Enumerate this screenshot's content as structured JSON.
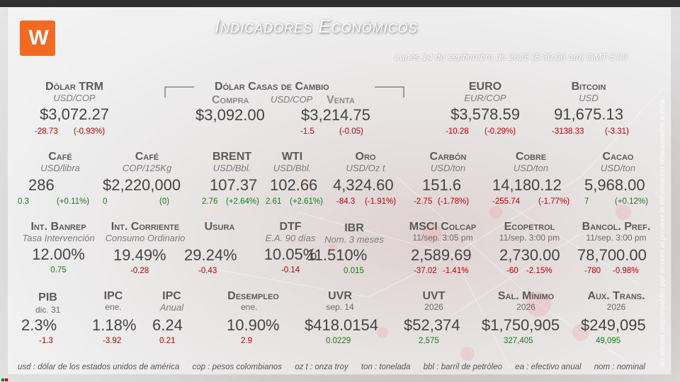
{
  "title": "Indicadores Económicos",
  "datetime": "Lunes 14 de septiembre de 2026 (5:30:00 am) GMT-5:00",
  "disclaimer": "No somos responsables por errores al proveer la información relacionados a ésta.",
  "logo": {
    "icon": "brand-logo-icon",
    "color": "#f26a21"
  },
  "colors": {
    "negative": "#c00000",
    "positive": "#1a7a1a"
  },
  "row1": {
    "trm": {
      "label": "Dólar TRM",
      "unit": "USD/COP",
      "value": "$3,072.27",
      "chg": "-28.73",
      "pct": "(-0.93%)"
    },
    "casas": {
      "label": "Dólar Casas de Cambio",
      "unit": "USD/COP",
      "compra_label": "Compra",
      "compra_value": "$3,092.00",
      "venta_label": "Venta",
      "venta_value": "$3,214.75",
      "venta_chg": "-1.5",
      "venta_pct": "(-0.05)"
    },
    "euro": {
      "label": "EURO",
      "unit": "EUR/COP",
      "value": "$3,578.59",
      "chg": "-10.28",
      "pct": "(-0.29%)"
    },
    "bitcoin": {
      "label": "Bitcoin",
      "unit": "USD",
      "value": "91,675.13",
      "chg": "-3138.33",
      "pct": "(-3.31)"
    }
  },
  "row2": {
    "cafe1": {
      "label": "Café",
      "unit": "USD/libra",
      "value": "286",
      "chg": "0.3",
      "pct": "(+0.11%)"
    },
    "cafe2": {
      "label": "Café",
      "unit": "COP/125Kg",
      "value": "$2,220,000",
      "chg": "0",
      "pct": "(0)"
    },
    "brent": {
      "label": "BRENT",
      "unit": "USD/Bbl.",
      "value": "107.37",
      "chg": "2.76",
      "pct": "(+2.64%)"
    },
    "wti": {
      "label": "WTI",
      "unit": "USD/Bbl.",
      "value": "102.66",
      "chg": "2.61",
      "pct": "(+2.61%)"
    },
    "oro": {
      "label": "Oro",
      "unit": "USD/Oz t",
      "value": "4,324.60",
      "chg": "-84.3",
      "pct": "(-1.91%)"
    },
    "carbon": {
      "label": "Carbón",
      "unit": "USD/ton",
      "value": "151.6",
      "chg": "-2.75",
      "pct": "(-1.78%)"
    },
    "cobre": {
      "label": "Cobre",
      "unit": "USD/ton",
      "value": "14,180.12",
      "chg": "-255.74",
      "pct": "(-1.77%)"
    },
    "cacao": {
      "label": "Cacao",
      "unit": "USD/ton",
      "value": "5,968.00",
      "chg": "7",
      "pct": "(+0.12%)"
    }
  },
  "row3": {
    "banrep": {
      "label": "Int. Banrep",
      "unit": "Tasa Intervención",
      "value": "12.00%",
      "chg": "0.75"
    },
    "corriente": {
      "label": "Int. Corriente",
      "unit": "Consumo Ordinario",
      "value": "19.49%",
      "chg": "-0.28"
    },
    "usura": {
      "label": "Usura",
      "value": "29.24%",
      "chg": "-0.43"
    },
    "dtf": {
      "label": "DTF",
      "unit": "E.A. 90 días",
      "value": "10.05%",
      "chg": "-0.14"
    },
    "ibr": {
      "label": "IBR",
      "unit": "Nom. 3 meses",
      "value": "11.510%",
      "chg": "0.015"
    },
    "msci": {
      "label": "MSCI Colcap",
      "unit": "11/sep. 3:05 pm",
      "value": "2,589.69",
      "chg": "-37.02",
      "pct": "-1.41%"
    },
    "ecopetrol": {
      "label": "Ecopetrol",
      "unit": "11/sep. 3:00 pm",
      "value": "2,730.00",
      "chg": "-60",
      "pct": "-2.15%"
    },
    "bancol": {
      "label": "Bancol. Pref.",
      "unit": "11/sep. 3:00 pm",
      "value": "78,700.00",
      "chg": "-780",
      "pct": "-0.98%"
    }
  },
  "row4": {
    "pib": {
      "label": "PIB",
      "unit": "dic. 31",
      "value": "2.3%",
      "chg": "-1.3"
    },
    "ipc1": {
      "label": "IPC",
      "unit": "ene.",
      "value": "1.18%",
      "chg": "-3.92"
    },
    "ipc2": {
      "label": "IPC",
      "unit": "Anual",
      "value": "6.24",
      "chg": "0.21"
    },
    "desempleo": {
      "label": "Desempleo",
      "unit": "ene.",
      "value": "10.90%",
      "chg": "2.9"
    },
    "uvr": {
      "label": "UVR",
      "unit": "sep. 14",
      "value": "$418.0154",
      "chg": "0.0229"
    },
    "uvt": {
      "label": "UVT",
      "unit": "2026",
      "value": "$52,374",
      "chg": "2,575"
    },
    "salmin": {
      "label": "Sal. Mínimo",
      "unit": "2026",
      "value": "$1,750,905",
      "chg": "327,405"
    },
    "auxtrans": {
      "label": "Aux. Trans.",
      "unit": "2026",
      "value": "$249,095",
      "chg": "49,095"
    }
  },
  "footer": [
    "usd : dólar de los estados unidos de américa",
    "cop : pesos colombianos",
    "oz t : onza troy",
    "ton : tonelada",
    "bbl : barril de petróleo",
    "ea : efectivo anual",
    "nom : nominal"
  ]
}
